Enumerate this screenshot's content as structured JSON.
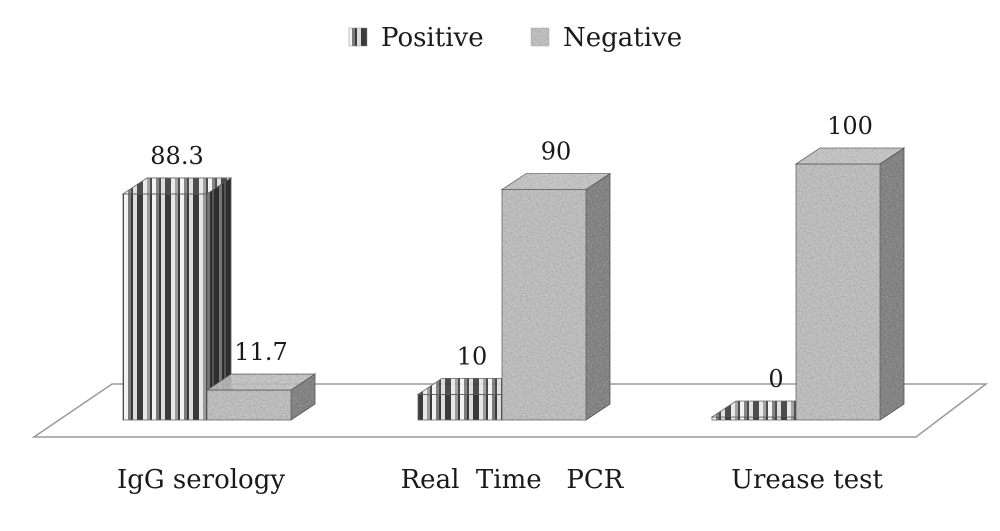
{
  "chart_data": {
    "type": "bar",
    "categories": [
      "IgG serology",
      "Real  Time   PCR",
      "Urease test"
    ],
    "series": [
      {
        "name": "Positive",
        "values": [
          88.3,
          10,
          0
        ],
        "value_labels": [
          "88.3",
          "10",
          "0"
        ]
      },
      {
        "name": "Negative",
        "values": [
          11.7,
          90,
          100
        ],
        "value_labels": [
          "11.7",
          "90",
          "100"
        ]
      }
    ],
    "ylim": [
      0,
      100
    ],
    "grid": false,
    "legend_position": "top-center",
    "style": "3d",
    "colors": {
      "positive": "#8c8c8c",
      "negative": "#a9a9a9",
      "floor": "#ffffff",
      "outline": "#666666"
    }
  }
}
